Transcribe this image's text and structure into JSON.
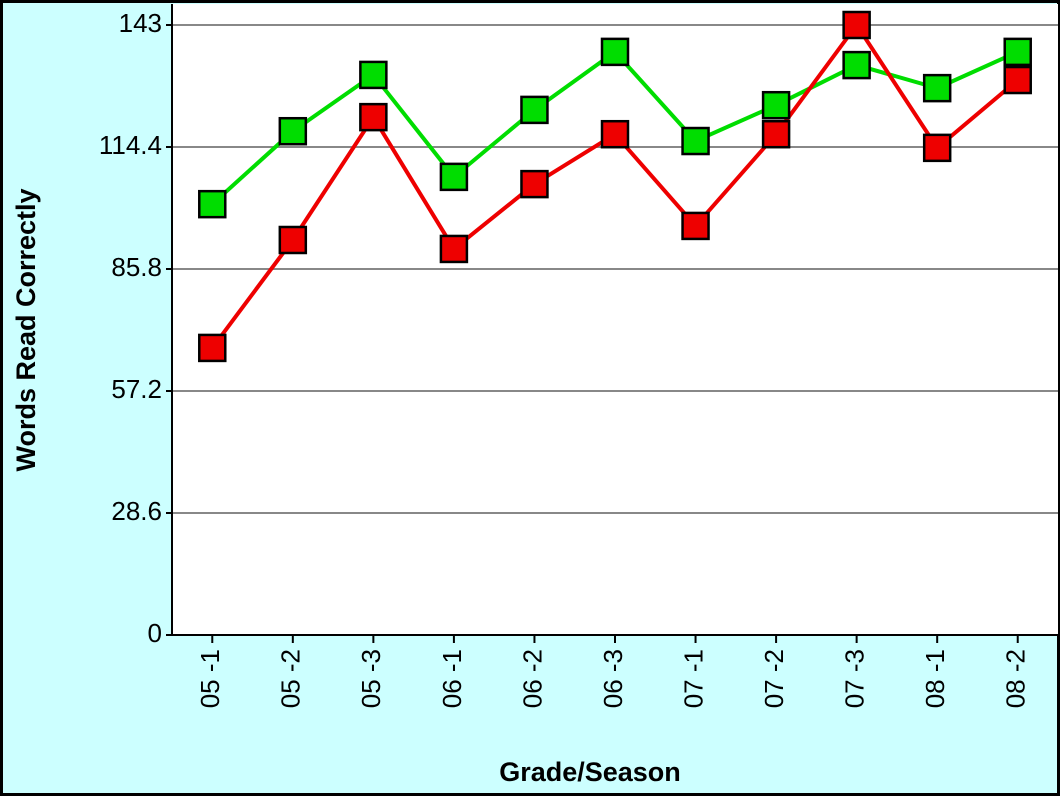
{
  "chart_data": {
    "type": "line",
    "x_label": "Grade/Season",
    "y_label": "Words Read Correctly",
    "categories": [
      "05 -1",
      "05 -2",
      "05 -3",
      "06 -1",
      "06 -2",
      "06 -3",
      "07 -1",
      "07 -2",
      "07 -3",
      "08 -1",
      "08 -2"
    ],
    "series": [
      {
        "color": "#00dd00",
        "values": [
          101.0,
          118.1,
          131.3,
          107.4,
          123.1,
          136.7,
          115.8,
          124.2,
          133.6,
          128.2,
          136.7
        ]
      },
      {
        "color": "#ee0000",
        "values": [
          67.3,
          92.6,
          121.4,
          90.5,
          105.7,
          117.4,
          95.9,
          117.4,
          143,
          114.2,
          130.1
        ]
      }
    ],
    "ylim": [
      0,
      143
    ],
    "yticks": [
      0,
      28.6,
      57.2,
      85.8,
      114.4,
      143
    ],
    "grid": true
  }
}
